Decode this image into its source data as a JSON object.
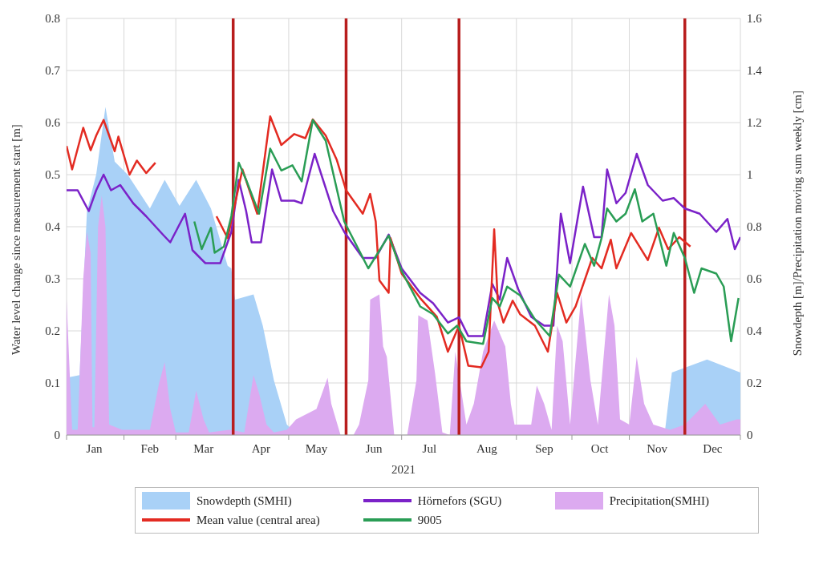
{
  "chart_data": {
    "type": "line",
    "xlabel": "2021",
    "ylabel": "Water level change since measurement start [m]",
    "y2label": "Snowdepth [m]/Precipitation moving sum weekly [cm]",
    "xlim": [
      "2021-01-01",
      "2021-12-31"
    ],
    "xticks": [
      {
        "value": "2021-01-01",
        "label": null
      },
      {
        "value": "2021-01-16",
        "label": "Jan"
      },
      {
        "value": "2021-02-01",
        "label": null
      },
      {
        "value": "2021-02-15",
        "label": "Feb"
      },
      {
        "value": "2021-03-01",
        "label": null
      },
      {
        "value": "2021-03-16",
        "label": "Mar"
      },
      {
        "value": "2021-04-16",
        "label": "Apr"
      },
      {
        "value": "2021-05-01",
        "label": null
      },
      {
        "value": "2021-05-16",
        "label": "May"
      },
      {
        "value": "2021-06-16",
        "label": "Jun"
      },
      {
        "value": "2021-07-01",
        "label": null
      },
      {
        "value": "2021-07-16",
        "label": "Jul"
      },
      {
        "value": "2021-08-16",
        "label": "Aug"
      },
      {
        "value": "2021-09-01",
        "label": null
      },
      {
        "value": "2021-09-16",
        "label": "Sep"
      },
      {
        "value": "2021-10-01",
        "label": null
      },
      {
        "value": "2021-10-16",
        "label": "Oct"
      },
      {
        "value": "2021-11-01",
        "label": null
      },
      {
        "value": "2021-11-16",
        "label": "Nov"
      },
      {
        "value": "2021-12-16",
        "label": "Dec"
      },
      {
        "value": "2021-12-31",
        "label": null
      }
    ],
    "ylim": [
      0,
      0.8
    ],
    "yticks": [
      0,
      0.1,
      0.2,
      0.3,
      0.4,
      0.5,
      0.6,
      0.7,
      0.8
    ],
    "y2lim": [
      0,
      1.6
    ],
    "y2ticks": [
      0,
      0.2,
      0.4,
      0.6,
      0.8,
      1,
      1.2,
      1.4,
      1.6
    ],
    "grid": true,
    "legend": "bottom",
    "ref_lines": [
      {
        "axis": "x",
        "value": "2021-04-01",
        "color": "#b81d1d"
      },
      {
        "axis": "x",
        "value": "2021-06-01",
        "color": "#b81d1d"
      },
      {
        "axis": "x",
        "value": "2021-08-01",
        "color": "#b81d1d"
      },
      {
        "axis": "x",
        "value": "2021-12-01",
        "color": "#b81d1d"
      }
    ],
    "series": [
      {
        "name": "Snowdepth (SMHI)",
        "type": "area",
        "axis": "y2",
        "color": "#a9d1f7",
        "x": [
          "2021-01-01",
          "2021-01-08",
          "2021-01-12",
          "2021-01-17",
          "2021-01-22",
          "2021-01-27",
          "2021-02-03",
          "2021-02-15",
          "2021-02-23",
          "2021-03-03",
          "2021-03-12",
          "2021-03-20",
          "2021-03-29",
          "2021-03-31",
          "2021-04-02",
          "2021-04-12",
          "2021-04-17",
          "2021-04-23",
          "2021-04-30",
          "2021-05-06",
          "2021-11-20",
          "2021-11-24",
          "2021-12-13",
          "2021-12-31"
        ],
        "values": [
          0.22,
          0.23,
          0.86,
          1.0,
          1.26,
          1.05,
          1.0,
          0.87,
          0.98,
          0.88,
          0.98,
          0.87,
          0.65,
          0.64,
          0.52,
          0.54,
          0.42,
          0.21,
          0.04,
          0,
          0,
          0.24,
          0.29,
          0.24
        ]
      },
      {
        "name": "Hörnefors (SGU)",
        "color": "#7b22c8",
        "x": [
          "2021-01-01",
          "2021-01-07",
          "2021-01-13",
          "2021-01-17",
          "2021-01-21",
          "2021-01-25",
          "2021-01-30",
          "2021-02-06",
          "2021-02-13",
          "2021-02-22",
          "2021-02-26",
          "2021-03-06",
          "2021-03-10",
          "2021-03-17",
          "2021-03-25",
          "2021-03-31",
          "2021-04-04",
          "2021-04-08",
          "2021-04-11",
          "2021-04-16",
          "2021-04-22",
          "2021-04-27",
          "2021-05-04",
          "2021-05-08",
          "2021-05-15",
          "2021-05-25",
          "2021-05-31",
          "2021-06-10",
          "2021-06-17",
          "2021-06-24",
          "2021-07-01",
          "2021-07-11",
          "2021-07-18",
          "2021-07-26",
          "2021-08-01",
          "2021-08-06",
          "2021-08-14",
          "2021-08-19",
          "2021-08-23",
          "2021-08-27",
          "2021-09-02",
          "2021-09-09",
          "2021-09-16",
          "2021-09-21",
          "2021-09-25",
          "2021-09-30",
          "2021-10-07",
          "2021-10-13",
          "2021-10-17",
          "2021-10-20",
          "2021-10-25",
          "2021-10-30",
          "2021-11-05",
          "2021-11-11",
          "2021-11-19",
          "2021-11-25",
          "2021-12-01",
          "2021-12-09",
          "2021-12-18",
          "2021-12-24",
          "2021-12-28",
          "2021-12-31"
        ],
        "values": [
          0.47,
          0.47,
          0.43,
          0.47,
          0.5,
          0.47,
          0.48,
          0.445,
          0.42,
          0.385,
          0.37,
          0.425,
          0.355,
          0.33,
          0.33,
          0.39,
          0.49,
          0.43,
          0.37,
          0.37,
          0.51,
          0.45,
          0.45,
          0.445,
          0.54,
          0.43,
          0.39,
          0.34,
          0.34,
          0.385,
          0.32,
          0.273,
          0.253,
          0.216,
          0.226,
          0.19,
          0.19,
          0.29,
          0.26,
          0.34,
          0.28,
          0.227,
          0.21,
          0.21,
          0.425,
          0.33,
          0.477,
          0.38,
          0.38,
          0.51,
          0.445,
          0.465,
          0.54,
          0.48,
          0.45,
          0.455,
          0.435,
          0.425,
          0.39,
          0.415,
          0.357,
          0.38
        ]
      },
      {
        "name": "Precipitation(SMHI)",
        "type": "area",
        "axis": "y2",
        "color": "#dcaaf0",
        "x": [
          "2021-01-01",
          "2021-01-04",
          "2021-01-07",
          "2021-01-10",
          "2021-01-12",
          "2021-01-14",
          "2021-01-15",
          "2021-01-16",
          "2021-01-18",
          "2021-01-20",
          "2021-01-22",
          "2021-01-24",
          "2021-01-31",
          "2021-02-15",
          "2021-02-20",
          "2021-02-23",
          "2021-02-26",
          "2021-03-01",
          "2021-03-08",
          "2021-03-12",
          "2021-03-16",
          "2021-03-19",
          "2021-03-30",
          "2021-04-07",
          "2021-04-12",
          "2021-04-15",
          "2021-04-19",
          "2021-04-23",
          "2021-04-30",
          "2021-05-05",
          "2021-05-16",
          "2021-05-22",
          "2021-05-24",
          "2021-05-29",
          "2021-06-05",
          "2021-06-08",
          "2021-06-13",
          "2021-06-14",
          "2021-06-19",
          "2021-06-21",
          "2021-06-23",
          "2021-06-27",
          "2021-07-04",
          "2021-07-09",
          "2021-07-10",
          "2021-07-15",
          "2021-07-19",
          "2021-07-23",
          "2021-07-27",
          "2021-07-30",
          "2021-08-05",
          "2021-08-09",
          "2021-08-14",
          "2021-08-20",
          "2021-08-26",
          "2021-08-29",
          "2021-08-31",
          "2021-09-09",
          "2021-09-12",
          "2021-09-16",
          "2021-09-20",
          "2021-09-23",
          "2021-09-26",
          "2021-09-30",
          "2021-10-06",
          "2021-10-11",
          "2021-10-15",
          "2021-10-21",
          "2021-10-24",
          "2021-10-27",
          "2021-11-01",
          "2021-11-05",
          "2021-11-09",
          "2021-11-14",
          "2021-11-23",
          "2021-12-01",
          "2021-12-12",
          "2021-12-20",
          "2021-12-29",
          "2021-12-31"
        ],
        "values": [
          0.52,
          0.02,
          0.02,
          0.6,
          0.78,
          0.7,
          0.03,
          0.03,
          0.8,
          0.92,
          0.8,
          0.04,
          0.02,
          0.02,
          0.2,
          0.28,
          0.1,
          0.01,
          0.01,
          0.17,
          0.06,
          0.01,
          0.02,
          0.01,
          0.23,
          0.16,
          0.04,
          0.01,
          0.02,
          0.06,
          0.1,
          0.22,
          0.12,
          0,
          0,
          0.04,
          0.21,
          0.52,
          0.54,
          0.34,
          0.3,
          0,
          0,
          0.21,
          0.46,
          0.44,
          0.24,
          0.01,
          0,
          0.32,
          0.04,
          0.12,
          0.32,
          0.44,
          0.34,
          0.12,
          0.04,
          0.04,
          0.19,
          0.12,
          0.02,
          0.42,
          0.36,
          0.04,
          0.54,
          0.21,
          0.04,
          0.54,
          0.42,
          0.06,
          0.04,
          0.3,
          0.12,
          0.04,
          0.02,
          0.04,
          0.12,
          0.04,
          0.06,
          0.06
        ]
      },
      {
        "name": "Mean value (central area)",
        "color": "#e32b22",
        "x": [
          "2021-01-01",
          "2021-01-04",
          "2021-01-10",
          "2021-01-14",
          "2021-01-17",
          "2021-01-21",
          "2021-01-27",
          "2021-01-29",
          "2021-02-04",
          "2021-02-08",
          "2021-02-13",
          "2021-02-18",
          "2021-03-02",
          "2021-03-23",
          "2021-03-29",
          "2021-04-06",
          "2021-04-14",
          "2021-04-21",
          "2021-04-27",
          "2021-05-04",
          "2021-05-10",
          "2021-05-14",
          "2021-05-21",
          "2021-05-27",
          "2021-06-01",
          "2021-06-05",
          "2021-06-10",
          "2021-06-14",
          "2021-06-17",
          "2021-06-19",
          "2021-06-24",
          "2021-06-25",
          "2021-07-01",
          "2021-07-11",
          "2021-07-20",
          "2021-07-26",
          "2021-08-01",
          "2021-08-06",
          "2021-08-13",
          "2021-08-17",
          "2021-08-20",
          "2021-08-22",
          "2021-08-25",
          "2021-08-30",
          "2021-09-03",
          "2021-09-11",
          "2021-09-18",
          "2021-09-23",
          "2021-09-28",
          "2021-10-03",
          "2021-10-12",
          "2021-10-17",
          "2021-10-22",
          "2021-10-25",
          "2021-11-02",
          "2021-11-11",
          "2021-11-17",
          "2021-11-22",
          "2021-11-28",
          "2021-12-04"
        ],
        "values": [
          0.555,
          0.51,
          0.59,
          0.547,
          0.575,
          0.605,
          0.545,
          0.573,
          0.5,
          0.527,
          0.503,
          0.523,
          null,
          0.42,
          0.378,
          0.51,
          0.425,
          0.612,
          0.557,
          0.578,
          0.57,
          0.606,
          0.575,
          0.528,
          0.47,
          0.45,
          0.425,
          0.463,
          0.41,
          0.297,
          0.273,
          0.378,
          0.31,
          0.263,
          0.227,
          0.16,
          0.21,
          0.133,
          0.13,
          0.16,
          0.395,
          0.253,
          0.216,
          0.258,
          0.232,
          0.21,
          0.16,
          0.273,
          0.216,
          0.247,
          0.34,
          0.32,
          0.375,
          0.32,
          0.388,
          0.336,
          0.398,
          0.357,
          0.38,
          0.362
        ]
      },
      {
        "name": "9005",
        "color": "#2a9d55",
        "x": [
          "2021-03-11",
          "2021-03-15",
          "2021-03-20",
          "2021-03-22",
          "2021-03-27",
          "2021-03-31",
          "2021-04-04",
          "2021-04-08",
          "2021-04-15",
          "2021-04-21",
          "2021-04-27",
          "2021-05-03",
          "2021-05-08",
          "2021-05-14",
          "2021-05-21",
          "2021-05-31",
          "2021-06-13",
          "2021-06-24",
          "2021-07-01",
          "2021-07-11",
          "2021-07-18",
          "2021-07-26",
          "2021-07-31",
          "2021-08-05",
          "2021-08-14",
          "2021-08-19",
          "2021-08-23",
          "2021-08-27",
          "2021-09-03",
          "2021-09-11",
          "2021-09-19",
          "2021-09-24",
          "2021-09-30",
          "2021-10-08",
          "2021-10-13",
          "2021-10-17",
          "2021-10-20",
          "2021-10-25",
          "2021-10-30",
          "2021-11-04",
          "2021-11-08",
          "2021-11-14",
          "2021-11-21",
          "2021-11-25",
          "2021-12-01",
          "2021-12-06",
          "2021-12-10",
          "2021-12-18",
          "2021-12-22",
          "2021-12-26",
          "2021-12-30"
        ],
        "values": [
          0.41,
          0.357,
          0.398,
          0.35,
          0.362,
          0.42,
          0.523,
          0.49,
          0.425,
          0.55,
          0.508,
          0.518,
          0.487,
          0.605,
          0.565,
          0.41,
          0.32,
          0.383,
          0.315,
          0.247,
          0.232,
          0.195,
          0.21,
          0.18,
          0.175,
          0.263,
          0.247,
          0.285,
          0.268,
          0.222,
          0.19,
          0.308,
          0.285,
          0.367,
          0.325,
          0.378,
          0.435,
          0.41,
          0.425,
          0.472,
          0.41,
          0.425,
          0.325,
          0.388,
          0.34,
          0.273,
          0.32,
          0.31,
          0.285,
          0.18,
          0.263
        ]
      }
    ]
  }
}
